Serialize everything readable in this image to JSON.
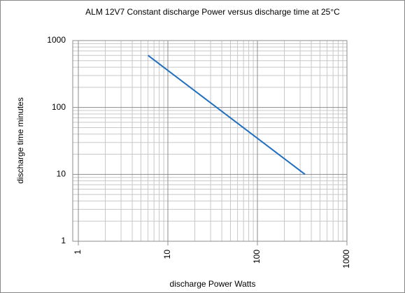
{
  "chart_data": {
    "type": "line",
    "title": "ALM 12V7 Constant discharge Power versus discharge time at 25°C",
    "xlabel": "discharge Power Watts",
    "ylabel": "discharge time minutes",
    "x": [
      6,
      340
    ],
    "series": [
      {
        "name": "ALM 12V7",
        "color": "#1f6fbf",
        "values": [
          600,
          10
        ]
      }
    ],
    "xlim": [
      1,
      1000
    ],
    "ylim": [
      1,
      1000
    ],
    "xticks": [
      1,
      10,
      100,
      1000
    ],
    "yticks": [
      1,
      10,
      100,
      1000
    ],
    "xscale": "log",
    "yscale": "log",
    "grid": true
  }
}
